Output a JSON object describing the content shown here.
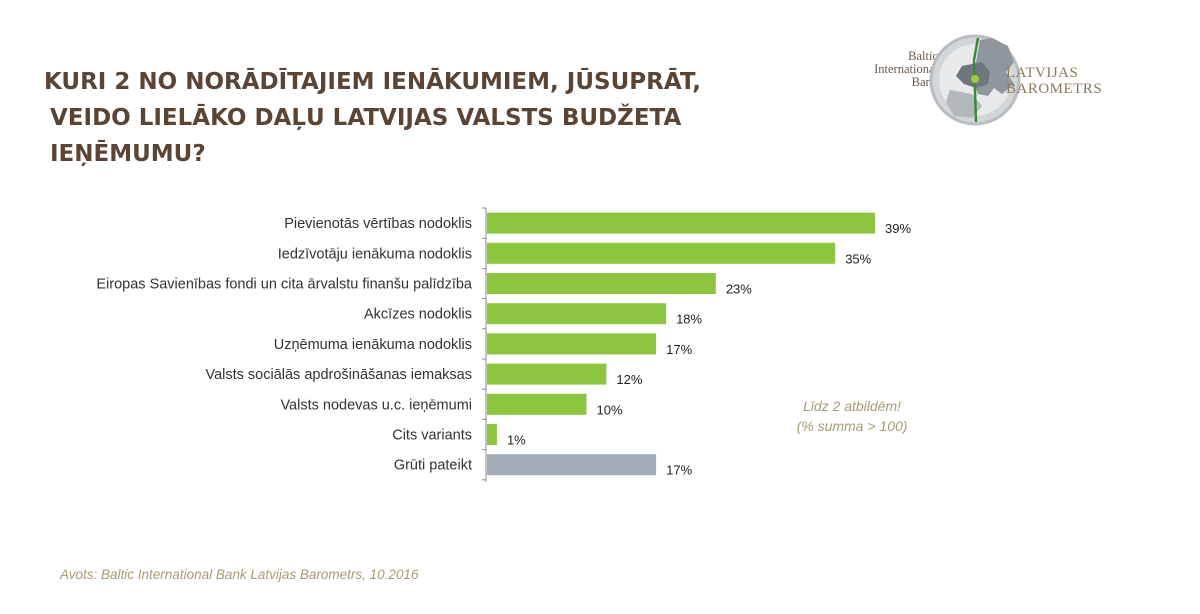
{
  "title": {
    "line1": "KURI 2  NO NORĀDĪTAJIEM IENĀKUMIEM, JŪSUPRĀT,",
    "line2": "VEIDO LIELĀKO DAĻU LATVIJAS VALSTS BUDŽETA IEŅĒMUMU?"
  },
  "logo": {
    "bank_lines": [
      "Baltic",
      "International",
      "Bank"
    ],
    "barometer_lines": [
      "LATVIJAS",
      "BAROMETRS"
    ]
  },
  "note": {
    "line1": "Līdz 2 atbildēm!",
    "line2": "(% summa > 100)"
  },
  "source": "Avots: Baltic International Bank Latvijas Barometrs, 10.2016",
  "colors": {
    "green": "#8cc63f",
    "gray": "#a3adb8",
    "title": "#5b4434",
    "note": "#a79b72"
  },
  "chart_data": {
    "type": "bar",
    "orientation": "horizontal",
    "categories": [
      "Pievienotās vērtības nodoklis",
      "Iedzīvotāju ienākuma nodoklis",
      "Eiropas Savienības fondi un cita ārvalstu finanšu palīdzība",
      "Akcīzes nodoklis",
      "Uzņēmuma ienākuma nodoklis",
      "Valsts sociālās apdrošināšanas  iemaksas",
      "Valsts nodevas u.c. ieņēmumi",
      "Cits variants",
      "Grūti pateikt"
    ],
    "values": [
      39,
      35,
      23,
      18,
      17,
      12,
      10,
      1,
      17
    ],
    "value_labels": [
      "39%",
      "35%",
      "23%",
      "18%",
      "17%",
      "12%",
      "10%",
      "1%",
      "17%"
    ],
    "bar_colors": [
      "#8cc63f",
      "#8cc63f",
      "#8cc63f",
      "#8cc63f",
      "#8cc63f",
      "#8cc63f",
      "#8cc63f",
      "#8cc63f",
      "#a3adb8"
    ],
    "xlim": [
      0,
      39
    ],
    "grid": false,
    "legend": "none"
  }
}
